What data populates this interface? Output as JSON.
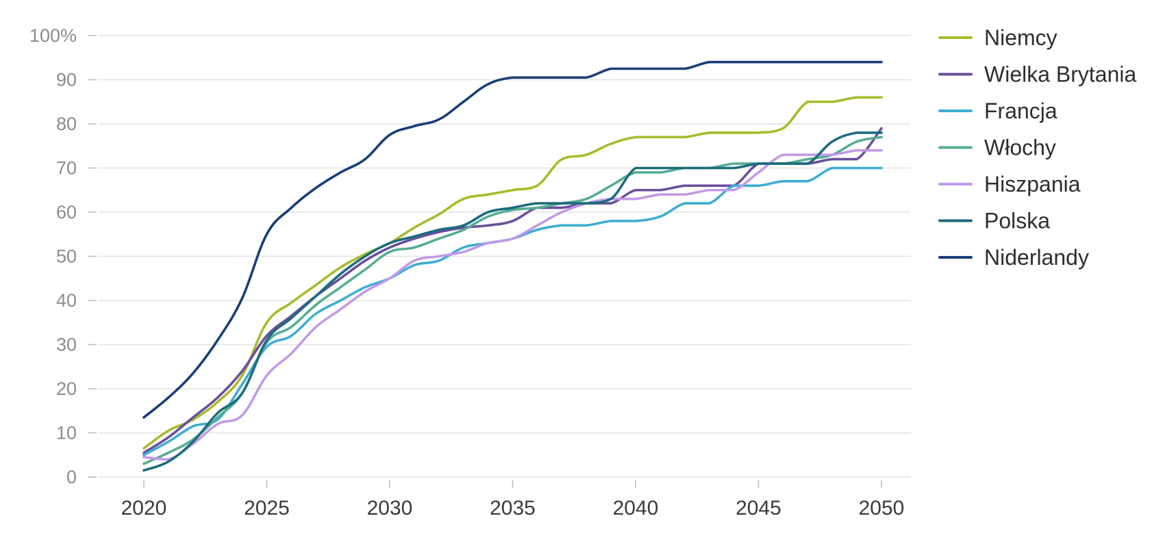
{
  "chart_data": {
    "type": "line",
    "title": "",
    "xlabel": "",
    "ylabel": "",
    "x": [
      2020,
      2021,
      2022,
      2023,
      2024,
      2025,
      2026,
      2027,
      2028,
      2029,
      2030,
      2031,
      2032,
      2033,
      2034,
      2035,
      2036,
      2037,
      2038,
      2039,
      2040,
      2041,
      2042,
      2043,
      2044,
      2045,
      2046,
      2047,
      2048,
      2049,
      2050
    ],
    "xlim": [
      2019,
      2051
    ],
    "ylim": [
      0,
      100
    ],
    "x_ticks": [
      "2020",
      "2025",
      "2030",
      "2035",
      "2040",
      "2045",
      "2050"
    ],
    "y_ticks": [
      "0",
      "10",
      "20",
      "30",
      "40",
      "50",
      "60",
      "70",
      "80",
      "90",
      "100%"
    ],
    "grid": "horizontal",
    "legend_position": "right",
    "series": [
      {
        "name": "Niemcy",
        "color": "#a8bb2a",
        "values": [
          6.5,
          10.5,
          13,
          17,
          23,
          35,
          39.5,
          43.5,
          47.5,
          50.5,
          53,
          56.5,
          59.5,
          63,
          64,
          65,
          66,
          72,
          73,
          75.5,
          77,
          77,
          77,
          78,
          78,
          78,
          79,
          85,
          85,
          86,
          86
        ]
      },
      {
        "name": "Wielka Brytania",
        "color": "#6b4e9c",
        "values": [
          5.5,
          9,
          13.5,
          18,
          24,
          32,
          36.5,
          41,
          45,
          49,
          52,
          54,
          55.5,
          56.5,
          57,
          58,
          61,
          61,
          62,
          62,
          65,
          65,
          66,
          66,
          66,
          71,
          71,
          71,
          72,
          72,
          79
        ]
      },
      {
        "name": "Francja",
        "color": "#3eaed1",
        "values": [
          5,
          8,
          11.5,
          13,
          21,
          29.5,
          32,
          37,
          40,
          43,
          45,
          48,
          49,
          52,
          53,
          54,
          56,
          57,
          57,
          58,
          58,
          59,
          62,
          62,
          66,
          66,
          67,
          67,
          70,
          70,
          70
        ]
      },
      {
        "name": "Włochy",
        "color": "#55ad92",
        "values": [
          3,
          5.5,
          8.5,
          13.5,
          19,
          30.5,
          34,
          39,
          43,
          47,
          51,
          52,
          54,
          56,
          59,
          60.5,
          61,
          62,
          63,
          66,
          69,
          69,
          70,
          70,
          71,
          71,
          71,
          72,
          73,
          76,
          77
        ]
      },
      {
        "name": "Hiszpania",
        "color": "#c19ae6",
        "values": [
          4.5,
          4,
          7.5,
          12,
          14,
          23,
          28,
          34,
          38,
          42,
          45,
          49,
          50,
          51,
          53,
          54,
          57,
          60,
          62,
          63,
          63,
          64,
          64,
          65,
          65,
          69,
          73,
          73,
          73,
          74,
          74
        ]
      },
      {
        "name": "Polska",
        "color": "#1d6c7e",
        "values": [
          1.5,
          3.5,
          8,
          14.5,
          19,
          31,
          36,
          41,
          46,
          50,
          53,
          54.5,
          56,
          57,
          60,
          61,
          62,
          62,
          62,
          63,
          70,
          70,
          70,
          70,
          70,
          71,
          71,
          71,
          76,
          78,
          78
        ]
      },
      {
        "name": "Niderlandy",
        "color": "#1a3f77",
        "values": [
          13.5,
          18,
          23.5,
          31,
          40.5,
          55,
          61,
          65.5,
          69,
          72,
          77.5,
          79.5,
          81,
          85,
          89,
          90.5,
          90.5,
          90.5,
          90.5,
          92.5,
          92.5,
          92.5,
          92.5,
          94,
          94,
          94,
          94,
          94,
          94,
          94,
          94
        ]
      }
    ]
  }
}
